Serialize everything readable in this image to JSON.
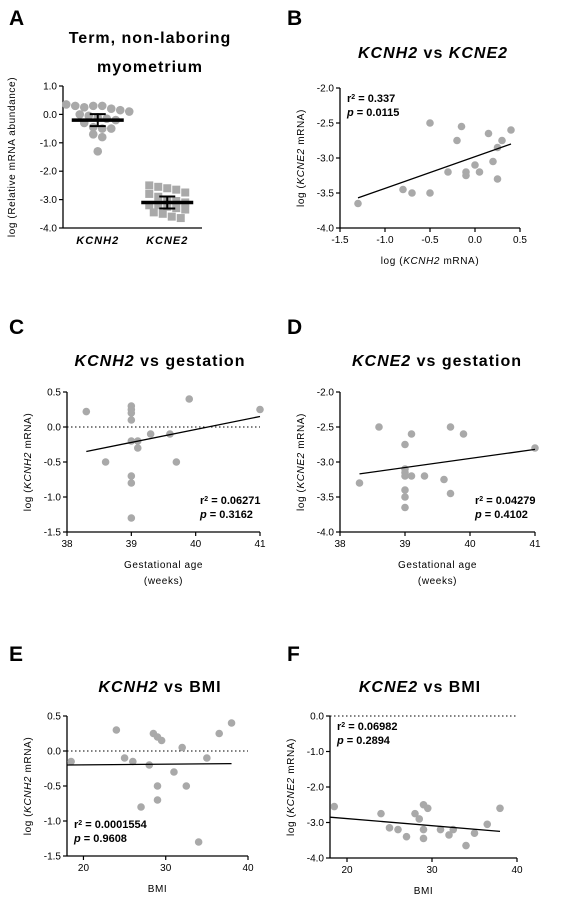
{
  "chart_data": [
    {
      "id": "A",
      "panel_label": "A",
      "type": "scatter",
      "title": [
        {
          "text": "Term, non-laboring",
          "italic": false
        }
      ],
      "title_line2": "myometrium",
      "xlabel": "",
      "ylabel": "log (Relative mRNA abundance)",
      "ylim": [
        -4.0,
        1.0
      ],
      "yticks": [
        "1.0",
        "0.0",
        "-1.0",
        "-2.0",
        "-3.0",
        "-4.0"
      ],
      "categories": [
        "KCNH2",
        "KCNE2"
      ],
      "series": [
        {
          "category": "KCNH2",
          "marker": "circle",
          "mean": -0.2,
          "values": [
            0.35,
            0.3,
            0.25,
            0.3,
            0.3,
            0.2,
            0.15,
            0.1,
            0.0,
            -0.05,
            -0.1,
            -0.15,
            -0.2,
            -0.3,
            -0.45,
            -0.5,
            -0.5,
            -0.7,
            -0.8,
            -1.3
          ]
        },
        {
          "category": "KCNE2",
          "marker": "square",
          "mean": -3.1,
          "values": [
            -2.5,
            -2.55,
            -2.6,
            -2.65,
            -2.75,
            -2.8,
            -2.9,
            -3.0,
            -3.05,
            -3.1,
            -3.2,
            -3.2,
            -3.25,
            -3.3,
            -3.35,
            -3.45,
            -3.5,
            -3.6,
            -3.65
          ]
        }
      ]
    },
    {
      "id": "B",
      "panel_label": "B",
      "type": "scatter",
      "title": [
        {
          "text": "KCNH2",
          "italic": true
        },
        {
          "text": " vs ",
          "italic": false
        },
        {
          "text": "KCNE2",
          "italic": true
        }
      ],
      "xlabel": [
        {
          "text": "log (",
          "italic": false
        },
        {
          "text": "KCNH2",
          "italic": true
        },
        {
          "text": " mRNA)",
          "italic": false
        }
      ],
      "ylabel": [
        {
          "text": "log (",
          "italic": false
        },
        {
          "text": "KCNE2",
          "italic": true
        },
        {
          "text": " mRNA)",
          "italic": false
        }
      ],
      "xlim": [
        -1.5,
        0.5
      ],
      "ylim": [
        -4.0,
        -2.0
      ],
      "xticks": [
        "-1.5",
        "-1.0",
        "-0.5",
        "0.0",
        "0.5"
      ],
      "yticks": [
        "-2.0",
        "-2.5",
        "-3.0",
        "-3.5",
        "-4.0"
      ],
      "stats": {
        "r2": "0.337",
        "p": "0.0115",
        "position": "top-left"
      },
      "fit": {
        "x": [
          -1.3,
          0.4
        ],
        "y": [
          -3.57,
          -2.8
        ]
      },
      "x": [
        -1.3,
        -0.8,
        -0.7,
        -0.5,
        -0.5,
        -0.3,
        -0.2,
        -0.15,
        -0.1,
        -0.1,
        0.0,
        0.05,
        0.15,
        0.2,
        0.25,
        0.25,
        0.3,
        0.4
      ],
      "y": [
        -3.65,
        -3.45,
        -3.5,
        -2.5,
        -3.5,
        -3.2,
        -2.75,
        -2.55,
        -3.2,
        -3.25,
        -3.1,
        -3.2,
        -2.65,
        -3.05,
        -3.3,
        -2.85,
        -2.75,
        -2.6
      ]
    },
    {
      "id": "C",
      "panel_label": "C",
      "type": "scatter",
      "title": [
        {
          "text": "KCNH2",
          "italic": true
        },
        {
          "text": " vs gestation",
          "italic": false
        }
      ],
      "xlabel": [
        "Gestational age",
        "(weeks)"
      ],
      "ylabel": [
        {
          "text": "log (",
          "italic": false
        },
        {
          "text": "KCNH2",
          "italic": true
        },
        {
          "text": " mRNA)",
          "italic": false
        }
      ],
      "xlim": [
        38,
        41
      ],
      "ylim": [
        -1.5,
        0.5
      ],
      "xticks": [
        "38",
        "39",
        "40",
        "41"
      ],
      "yticks": [
        "0.5",
        "0.0",
        "-0.5",
        "-1.0",
        "-1.5"
      ],
      "zero_line": 0,
      "stats": {
        "r2": "0.06271",
        "p": "0.3162",
        "position": "bottom-right"
      },
      "fit": {
        "x": [
          38.3,
          41.0
        ],
        "y": [
          -0.35,
          0.15
        ]
      },
      "x": [
        38.3,
        38.6,
        39.0,
        39.0,
        39.0,
        39.0,
        39.0,
        39.0,
        39.0,
        39.0,
        39.1,
        39.1,
        39.3,
        39.6,
        39.7,
        39.9,
        41.0
      ],
      "y": [
        0.22,
        -0.5,
        0.3,
        0.25,
        0.2,
        0.1,
        -0.2,
        -0.7,
        -0.8,
        -1.3,
        -0.3,
        -0.2,
        -0.1,
        -0.1,
        -0.5,
        0.4,
        0.25
      ]
    },
    {
      "id": "D",
      "panel_label": "D",
      "type": "scatter",
      "title": [
        {
          "text": "KCNE2",
          "italic": true
        },
        {
          "text": " vs gestation",
          "italic": false
        }
      ],
      "xlabel": [
        "Gestational age",
        "(weeks)"
      ],
      "ylabel": [
        {
          "text": "log (",
          "italic": false
        },
        {
          "text": "KCNE2",
          "italic": true
        },
        {
          "text": " mRNA)",
          "italic": false
        }
      ],
      "xlim": [
        38,
        41
      ],
      "ylim": [
        -4.0,
        -2.0
      ],
      "xticks": [
        "38",
        "39",
        "40",
        "41"
      ],
      "yticks": [
        "-2.0",
        "-2.5",
        "-3.0",
        "-3.5",
        "-4.0"
      ],
      "stats": {
        "r2": "0.04279",
        "p": "0.4102",
        "position": "bottom-right"
      },
      "fit": {
        "x": [
          38.3,
          41.0
        ],
        "y": [
          -3.17,
          -2.82
        ]
      },
      "x": [
        38.3,
        38.6,
        39.0,
        39.0,
        39.0,
        39.0,
        39.0,
        39.0,
        39.0,
        39.1,
        39.1,
        39.3,
        39.6,
        39.7,
        39.7,
        39.9,
        41.0
      ],
      "y": [
        -3.3,
        -2.5,
        -2.75,
        -3.1,
        -3.15,
        -3.2,
        -3.4,
        -3.5,
        -3.65,
        -2.6,
        -3.2,
        -3.2,
        -3.25,
        -2.5,
        -3.45,
        -2.6,
        -2.8
      ]
    },
    {
      "id": "E",
      "panel_label": "E",
      "type": "scatter",
      "title": [
        {
          "text": "KCNH2",
          "italic": true
        },
        {
          "text": " vs BMI",
          "italic": false
        }
      ],
      "xlabel": "BMI",
      "ylabel": [
        {
          "text": "log (",
          "italic": false
        },
        {
          "text": "KCNH2",
          "italic": true
        },
        {
          "text": " mRNA)",
          "italic": false
        }
      ],
      "xlim": [
        18,
        40
      ],
      "ylim": [
        -1.5,
        0.5
      ],
      "xticks": [
        "20",
        "30",
        "40"
      ],
      "yticks": [
        "0.5",
        "0.0",
        "-0.5",
        "-1.0",
        "-1.5"
      ],
      "zero_line": 0,
      "stats": {
        "r2": "0.0001554",
        "p": "0.9608",
        "position": "bottom-left"
      },
      "fit": {
        "x": [
          18,
          38
        ],
        "y": [
          -0.2,
          -0.18
        ]
      },
      "x": [
        18.5,
        24,
        25,
        26,
        27,
        28,
        28.5,
        29,
        29,
        29,
        29.5,
        31,
        32,
        32.5,
        34,
        35,
        36.5,
        38
      ],
      "y": [
        -0.15,
        0.3,
        -0.1,
        -0.15,
        -0.8,
        -0.2,
        0.25,
        0.2,
        -0.5,
        -0.7,
        0.15,
        -0.3,
        0.05,
        -0.5,
        -1.3,
        -0.1,
        0.25,
        0.4
      ]
    },
    {
      "id": "F",
      "panel_label": "F",
      "type": "scatter",
      "title": [
        {
          "text": "KCNE2",
          "italic": true
        },
        {
          "text": " vs BMI",
          "italic": false
        }
      ],
      "xlabel": "BMI",
      "ylabel": [
        {
          "text": "log (",
          "italic": false
        },
        {
          "text": "KCNE2",
          "italic": true
        },
        {
          "text": " mRNA)",
          "italic": false
        }
      ],
      "xlim": [
        18,
        40
      ],
      "ylim": [
        -4.0,
        0.0
      ],
      "xticks": [
        "20",
        "30",
        "40"
      ],
      "yticks": [
        "0.0",
        "-1.0",
        "-2.0",
        "-3.0",
        "-4.0"
      ],
      "zero_line": 0,
      "stats": {
        "r2": "0.06982",
        "p": "0.2894",
        "position": "top-left"
      },
      "fit": {
        "x": [
          18,
          38
        ],
        "y": [
          -2.85,
          -3.25
        ]
      },
      "x": [
        18.5,
        24,
        25,
        26,
        27,
        28,
        28.5,
        29,
        29,
        29,
        29.5,
        31,
        32,
        32.5,
        34,
        35,
        36.5,
        38
      ],
      "y": [
        -2.55,
        -2.75,
        -3.15,
        -3.2,
        -3.4,
        -2.75,
        -2.9,
        -3.2,
        -3.45,
        -2.5,
        -2.6,
        -3.2,
        -3.35,
        -3.2,
        -3.65,
        -3.3,
        -3.05,
        -2.6
      ]
    }
  ]
}
